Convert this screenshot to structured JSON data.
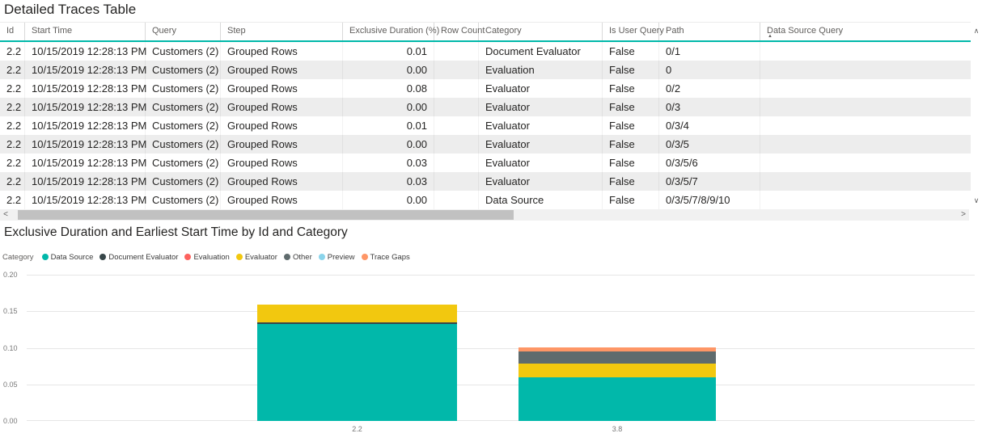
{
  "table": {
    "title": "Detailed Traces Table",
    "columns": [
      "Id",
      "Start Time",
      "Query",
      "Step",
      "Exclusive Duration (%)",
      "Row Count",
      "Category",
      "Is User Query",
      "Path",
      "Data Source Query"
    ],
    "numeric_columns": [
      4
    ],
    "sort": {
      "column": "Data Source Query",
      "direction": "ascending",
      "icon": "▲"
    },
    "rows": [
      [
        "2.2",
        "10/15/2019 12:28:13 PM",
        "Customers (2)",
        "Grouped Rows",
        "0.01",
        "",
        "Document Evaluator",
        "False",
        "0/1",
        ""
      ],
      [
        "2.2",
        "10/15/2019 12:28:13 PM",
        "Customers (2)",
        "Grouped Rows",
        "0.00",
        "",
        "Evaluation",
        "False",
        "0",
        ""
      ],
      [
        "2.2",
        "10/15/2019 12:28:13 PM",
        "Customers (2)",
        "Grouped Rows",
        "0.08",
        "",
        "Evaluator",
        "False",
        "0/2",
        ""
      ],
      [
        "2.2",
        "10/15/2019 12:28:13 PM",
        "Customers (2)",
        "Grouped Rows",
        "0.00",
        "",
        "Evaluator",
        "False",
        "0/3",
        ""
      ],
      [
        "2.2",
        "10/15/2019 12:28:13 PM",
        "Customers (2)",
        "Grouped Rows",
        "0.01",
        "",
        "Evaluator",
        "False",
        "0/3/4",
        ""
      ],
      [
        "2.2",
        "10/15/2019 12:28:13 PM",
        "Customers (2)",
        "Grouped Rows",
        "0.00",
        "",
        "Evaluator",
        "False",
        "0/3/5",
        ""
      ],
      [
        "2.2",
        "10/15/2019 12:28:13 PM",
        "Customers (2)",
        "Grouped Rows",
        "0.03",
        "",
        "Evaluator",
        "False",
        "0/3/5/6",
        ""
      ],
      [
        "2.2",
        "10/15/2019 12:28:13 PM",
        "Customers (2)",
        "Grouped Rows",
        "0.03",
        "",
        "Evaluator",
        "False",
        "0/3/5/7",
        ""
      ],
      [
        "2.2",
        "10/15/2019 12:28:13 PM",
        "Customers (2)",
        "Grouped Rows",
        "0.00",
        "",
        "Data Source",
        "False",
        "0/3/5/7/8/9/10",
        ""
      ]
    ]
  },
  "scrollbar_icons": {
    "up": "∧",
    "down": "∨",
    "left": "<",
    "right": ">"
  },
  "chart_data": {
    "type": "bar",
    "stacked": true,
    "title": "Exclusive Duration and Earliest Start Time by Id and Category",
    "legend_title": "Category",
    "legend_position": "top-left",
    "grid": true,
    "legend": [
      {
        "name": "Data Source",
        "color": "#01B8AA"
      },
      {
        "name": "Document Evaluator",
        "color": "#374649"
      },
      {
        "name": "Evaluation",
        "color": "#FD625E"
      },
      {
        "name": "Evaluator",
        "color": "#F2C80F"
      },
      {
        "name": "Other",
        "color": "#5F6B6D"
      },
      {
        "name": "Preview",
        "color": "#8AD4EB"
      },
      {
        "name": "Trace Gaps",
        "color": "#FE9666"
      }
    ],
    "categories": [
      "2.2",
      "3.8"
    ],
    "series": [
      {
        "name": "Data Source",
        "color": "#01B8AA",
        "values": [
          0.133,
          0.06
        ]
      },
      {
        "name": "Document Evaluator",
        "color": "#374649",
        "values": [
          0.002,
          0
        ]
      },
      {
        "name": "Evaluation",
        "color": "#FD625E",
        "values": [
          0,
          0
        ]
      },
      {
        "name": "Evaluator",
        "color": "#F2C80F",
        "values": [
          0.024,
          0.018
        ]
      },
      {
        "name": "Other",
        "color": "#5F6B6D",
        "values": [
          0,
          0.017
        ]
      },
      {
        "name": "Preview",
        "color": "#8AD4EB",
        "values": [
          0,
          0
        ]
      },
      {
        "name": "Trace Gaps",
        "color": "#FE9666",
        "values": [
          0,
          0.006
        ]
      }
    ],
    "y_ticks": [
      "0.20",
      "0.15",
      "0.10",
      "0.05",
      "0.00"
    ],
    "ylim": [
      0,
      0.2
    ]
  }
}
